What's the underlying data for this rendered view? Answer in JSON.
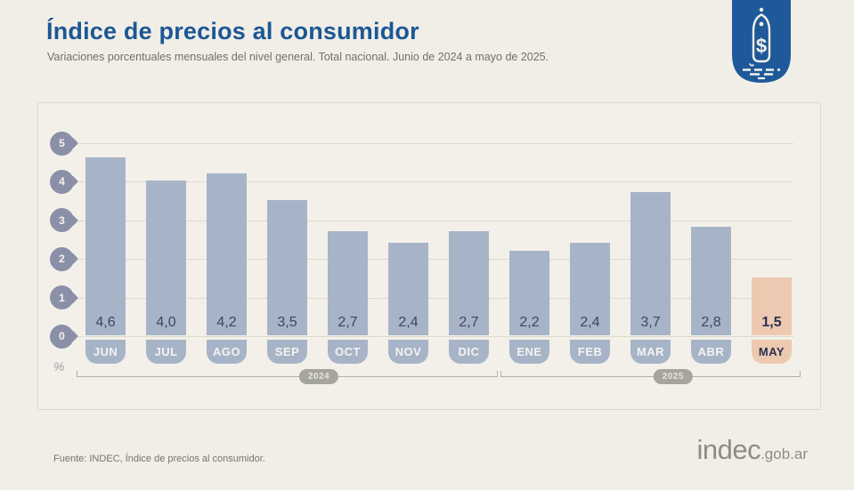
{
  "header": {
    "title": "Índice de precios al consumidor",
    "subtitle": "Variaciones porcentuales mensuales del nivel general. Total nacional. Junio de 2024 a mayo de 2025.",
    "badge_icon": "price-tag-icon"
  },
  "chart_data": {
    "type": "bar",
    "title": "Índice de precios al consumidor",
    "subtitle": "Variaciones porcentuales mensuales del nivel general. Total nacional. Junio de 2024 a mayo de 2025.",
    "ylabel": "%",
    "ylim": [
      0,
      5
    ],
    "yticks": [
      5,
      4,
      3,
      2,
      1,
      0
    ],
    "grid": true,
    "legend": "none",
    "categories": [
      "JUN",
      "JUL",
      "AGO",
      "SEP",
      "OCT",
      "NOV",
      "DIC",
      "ENE",
      "FEB",
      "MAR",
      "ABR",
      "MAY"
    ],
    "values": [
      4.6,
      4.0,
      4.2,
      3.5,
      2.7,
      2.4,
      2.7,
      2.2,
      2.4,
      3.7,
      2.8,
      1.5
    ],
    "display_values": [
      "4,6",
      "4,0",
      "4,2",
      "3,5",
      "2,7",
      "2,4",
      "2,7",
      "2,2",
      "2,4",
      "3,7",
      "2,8",
      "1,5"
    ],
    "highlight_index": 11,
    "year_groups": [
      {
        "label": "2024",
        "start": 0,
        "end": 6
      },
      {
        "label": "2025",
        "start": 7,
        "end": 11
      }
    ],
    "colors": {
      "bar": "#a7b4c8",
      "bar_highlight": "#edc9b1",
      "value_text": "#3e4564",
      "value_text_highlight": "#2b3050",
      "month_text": "#f4f3ef",
      "month_text_highlight": "#2b3050",
      "axis_pin": "#8b90a9",
      "gridline": "#ded9cd",
      "accent_blue": "#1c5795"
    }
  },
  "footer": {
    "source": "Fuente: INDEC, Índice de precios al consumidor.",
    "logo_main": "indec",
    "logo_suffix": ".gob.ar"
  }
}
